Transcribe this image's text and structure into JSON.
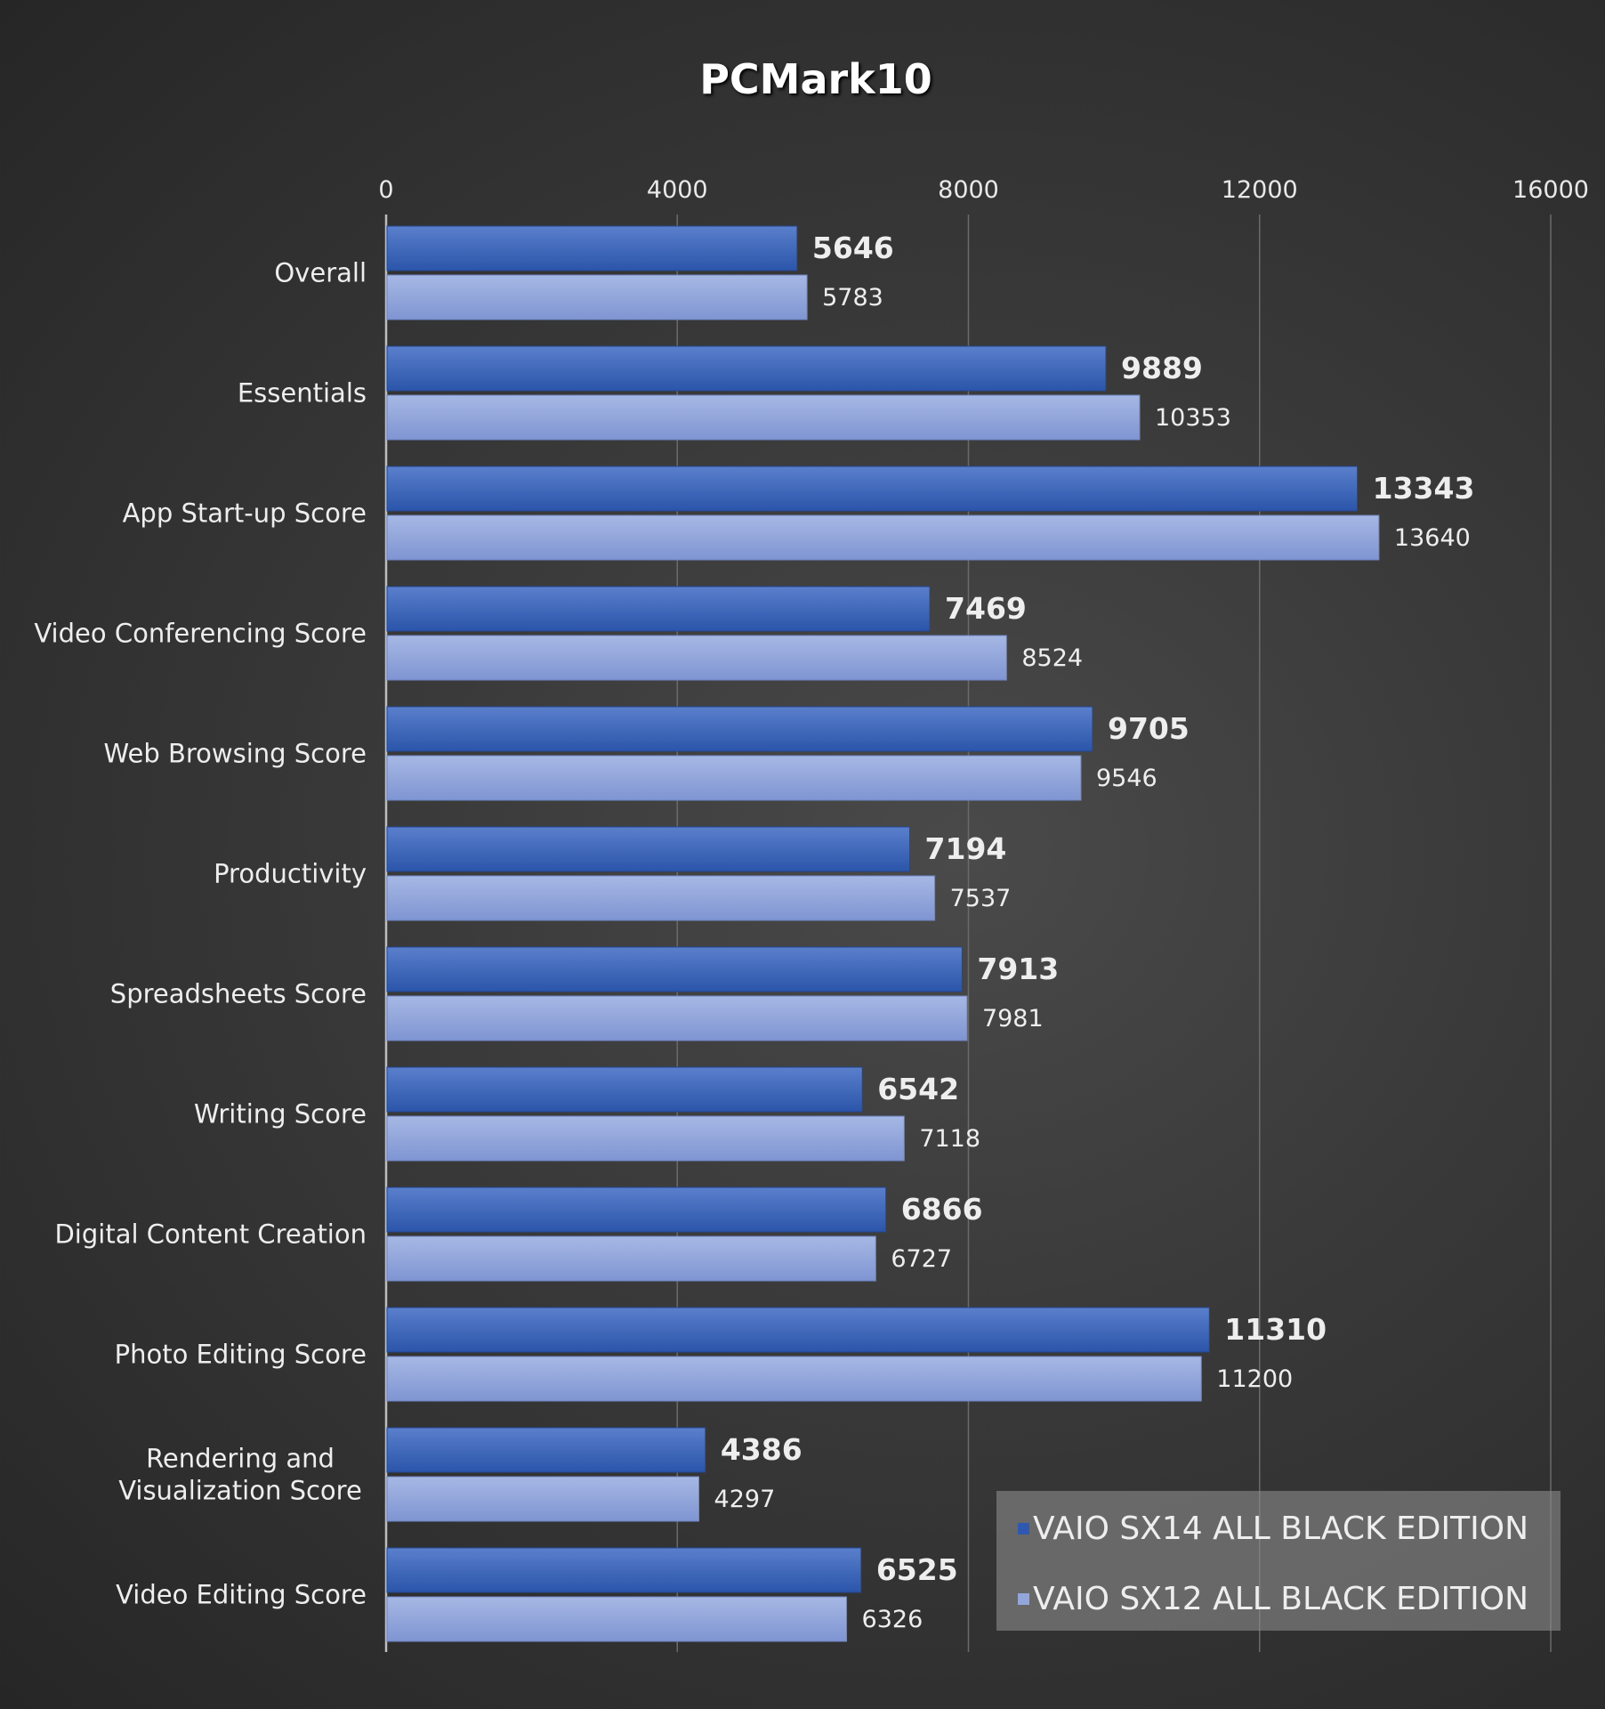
{
  "chart_data": {
    "type": "bar",
    "orientation": "horizontal",
    "title": "PCMark10",
    "xlabel": "",
    "ylabel": "",
    "xlim": [
      0,
      16000
    ],
    "x_ticks": [
      "0",
      "4000",
      "8000",
      "12000",
      "16000"
    ],
    "grid": true,
    "legend_position": "bottom-right",
    "categories": [
      "Overall",
      "Essentials",
      "App Start-up Score",
      "Video Conferencing Score",
      "Web Browsing Score",
      "Productivity",
      "Spreadsheets Score",
      "Writing Score",
      "Digital Content Creation",
      "Photo Editing Score",
      "Rendering and\nVisualization Score",
      "Video Editing Score"
    ],
    "series": [
      {
        "name": "VAIO SX14 ALL BLACK EDITION",
        "color": "#3a62b8",
        "values": [
          5646,
          9889,
          13343,
          7469,
          9705,
          7194,
          7913,
          6542,
          6866,
          11310,
          4386,
          6525
        ]
      },
      {
        "name": "VAIO SX12 ALL BLACK EDITION",
        "color": "#91a5da",
        "values": [
          5783,
          10353,
          13640,
          8524,
          9546,
          7537,
          7981,
          7118,
          6727,
          11200,
          4297,
          6326
        ]
      }
    ]
  }
}
